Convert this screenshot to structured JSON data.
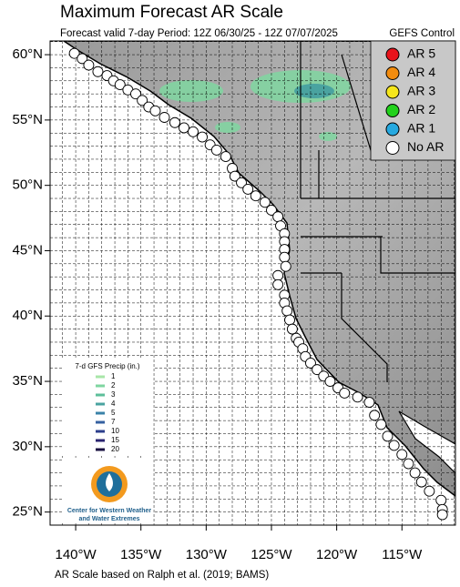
{
  "title": "Maximum Forecast AR Scale",
  "subtitle": "Forecast valid 7-day Period: 12Z 06/30/25 - 12Z 07/07/2025",
  "model": "GEFS Control",
  "chart_data": {
    "type": "map",
    "xlim": [
      -141.96,
      -110.9
    ],
    "ylim": [
      24.0,
      61.05
    ],
    "xticks": [
      {
        "value": -140,
        "label": "140°W"
      },
      {
        "value": -135,
        "label": "135°W"
      },
      {
        "value": -130,
        "label": "130°W"
      },
      {
        "value": -125,
        "label": "125°W"
      },
      {
        "value": -120,
        "label": "120°W"
      },
      {
        "value": -115,
        "label": "115°W"
      }
    ],
    "yticks": [
      {
        "value": 60,
        "label": "60°N"
      },
      {
        "value": 55,
        "label": "55°N"
      },
      {
        "value": 50,
        "label": "50°N"
      },
      {
        "value": 45,
        "label": "45°N"
      },
      {
        "value": 40,
        "label": "40°N"
      },
      {
        "value": 35,
        "label": "35°N"
      },
      {
        "value": 30,
        "label": "30°N"
      },
      {
        "value": 25,
        "label": "25°N"
      }
    ],
    "grid": true,
    "legend": [
      {
        "name": "AR 5",
        "color": "#e8141b"
      },
      {
        "name": "AR 4",
        "color": "#f28c0f"
      },
      {
        "name": "AR 3",
        "color": "#f5e61c"
      },
      {
        "name": "AR 2",
        "color": "#22d11c"
      },
      {
        "name": "AR 1",
        "color": "#26a9e0"
      },
      {
        "name": "No AR",
        "color": "#ffffff"
      }
    ],
    "points": {
      "color": "#ffffff",
      "lon": [
        -140.1,
        -139.5,
        -139.0,
        -138.3,
        -137.6,
        -137.1,
        -136.6,
        -136.0,
        -135.4,
        -134.9,
        -134.4,
        -133.9,
        -133.2,
        -132.4,
        -131.7,
        -131.0,
        -130.3,
        -129.7,
        -129.2,
        -128.5,
        -128.0,
        -127.8,
        -127.3,
        -126.8,
        -126.2,
        -125.5,
        -125.0,
        -124.5,
        -124.3,
        -124.0,
        -124.0,
        -124.0,
        -124.0,
        -123.9,
        -124.5,
        -124.5,
        -124.0,
        -124.0,
        -123.8,
        -123.6,
        -123.4,
        -123.1,
        -122.9,
        -122.6,
        -122.4,
        -122.0,
        -121.5,
        -121.0,
        -120.5,
        -119.9,
        -119.4,
        -118.4,
        -117.5,
        -117.1,
        -116.6,
        -116.1,
        -115.6,
        -115.0,
        -114.5,
        -114.0,
        -113.5,
        -112.9,
        -112.0,
        -111.9,
        -111.9
      ],
      "lat": [
        60.1,
        59.7,
        59.2,
        58.7,
        58.4,
        58.0,
        57.7,
        57.3,
        57.0,
        56.5,
        56.0,
        55.7,
        55.2,
        54.8,
        54.4,
        54.1,
        53.7,
        53.1,
        52.7,
        52.2,
        51.3,
        50.7,
        50.2,
        49.7,
        49.2,
        48.7,
        48.1,
        47.6,
        46.9,
        46.3,
        45.7,
        45.1,
        44.5,
        43.8,
        43.1,
        42.4,
        41.6,
        41.0,
        40.4,
        39.7,
        39.0,
        38.3,
        38.0,
        37.5,
        36.9,
        36.4,
        35.9,
        35.4,
        35.0,
        34.5,
        34.1,
        33.8,
        33.4,
        32.4,
        31.7,
        30.8,
        30.1,
        29.4,
        28.7,
        28.0,
        27.3,
        26.6,
        25.9,
        25.2,
        24.8
      ]
    }
  },
  "precip_legend": {
    "title": "7-d GFS Precip (in.)",
    "levels": [
      1,
      2,
      3,
      4,
      5,
      7,
      10,
      15,
      20
    ],
    "colors": [
      "#a8e6a8",
      "#7fd6a0",
      "#5cbf9a",
      "#4aa3a0",
      "#3a82a8",
      "#3560a0",
      "#2d3f8c",
      "#2a2470",
      "#1a1040"
    ]
  },
  "logo": {
    "line1": "Center for Western Weather",
    "line2": "and Water Extremes"
  },
  "footer": "AR Scale based on Ralph et al. (2019; BAMS)"
}
